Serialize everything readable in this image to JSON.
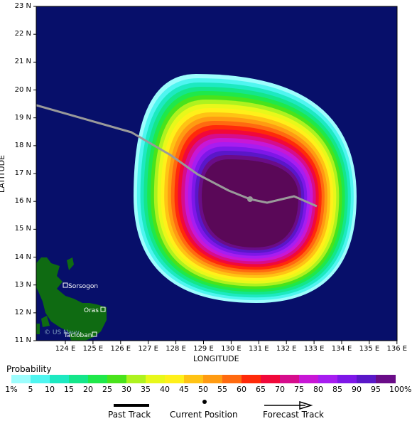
{
  "map": {
    "title_x": "LONGITUDE",
    "title_y": "LATITUDE",
    "background_color": "#070f6a",
    "land_color": "#0f6b12",
    "lat_labels": [
      "23 N",
      "22 N",
      "21 N",
      "20 N",
      "19 N",
      "18 N",
      "17 N",
      "16 N",
      "15 N",
      "14 N",
      "13 N",
      "12 N",
      "11 N"
    ],
    "lon_labels": [
      "124 E",
      "125 E",
      "126 E",
      "127 E",
      "128 E",
      "129 E",
      "130 E",
      "131 E",
      "132 E",
      "133 E",
      "134 E",
      "135 E",
      "136 E"
    ],
    "places": [
      {
        "name": "Sorsogon"
      },
      {
        "name": "Oras"
      },
      {
        "name": "Tacloban"
      }
    ],
    "watermark": "© US Navy",
    "track_color": "#9a9a9a"
  },
  "legend": {
    "title": "Probability",
    "bins": [
      {
        "label": "1%",
        "color": "#9dfdfd"
      },
      {
        "label": "5",
        "color": "#4ff5f0"
      },
      {
        "label": "10",
        "color": "#1de9c1"
      },
      {
        "label": "15",
        "color": "#14e68a"
      },
      {
        "label": "20",
        "color": "#1fe84a"
      },
      {
        "label": "25",
        "color": "#49e31b"
      },
      {
        "label": "30",
        "color": "#aef21f"
      },
      {
        "label": "35",
        "color": "#e8f81a"
      },
      {
        "label": "40",
        "color": "#fff01a"
      },
      {
        "label": "45",
        "color": "#ffc314"
      },
      {
        "label": "50",
        "color": "#ff9b12"
      },
      {
        "label": "55",
        "color": "#ff6a10"
      },
      {
        "label": "60",
        "color": "#ff2a0a"
      },
      {
        "label": "65",
        "color": "#f1083a"
      },
      {
        "label": "70",
        "color": "#d60d8c"
      },
      {
        "label": "75",
        "color": "#c817d6"
      },
      {
        "label": "80",
        "color": "#a71df0"
      },
      {
        "label": "85",
        "color": "#7e17e8"
      },
      {
        "label": "90",
        "color": "#5a17c8"
      },
      {
        "label": "95",
        "color": "#6a0c88"
      },
      {
        "label": "100%",
        "color": "#5a0858"
      }
    ]
  },
  "key": {
    "past_track": "Past Track",
    "current_position": "Current Position",
    "forecast_track": "Forecast Track"
  }
}
